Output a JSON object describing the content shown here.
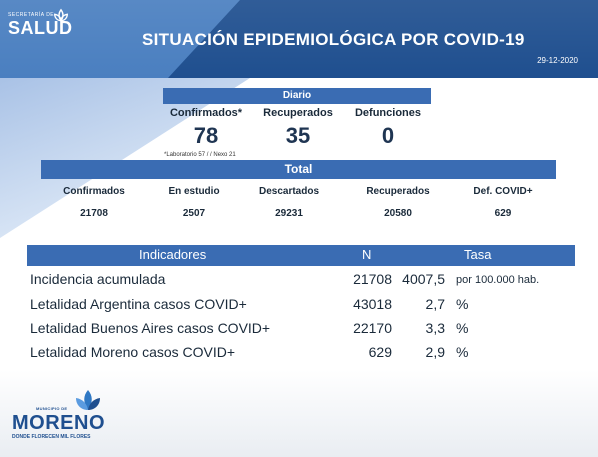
{
  "header": {
    "logo_small": "SECRETARÍA DE",
    "logo_big": "SALUD",
    "title": "SITUACIÓN EPIDEMIOLÓGICA POR COVID-19",
    "date": "29-12-2020"
  },
  "diario": {
    "label": "Diario",
    "columns": [
      {
        "label": "Confirmados*",
        "value": "78"
      },
      {
        "label": "Recuperados",
        "value": "35"
      },
      {
        "label": "Defunciones",
        "value": "0"
      }
    ],
    "footnote": "*Laboratorio 57 / / Nexo 21"
  },
  "total": {
    "label": "Total",
    "columns": [
      {
        "label": "Confirmados",
        "value": "21708"
      },
      {
        "label": "En estudio",
        "value": "2507"
      },
      {
        "label": "Descartados",
        "value": "29231"
      },
      {
        "label": "Recuperados",
        "value": "20580"
      },
      {
        "label": "Def. COVID+",
        "value": "629"
      }
    ]
  },
  "indicadores": {
    "headers": {
      "indicador": "Indicadores",
      "n": "N",
      "tasa": "Tasa"
    },
    "rows": [
      {
        "indicador": "Incidencia acumulada",
        "n": "21708",
        "tasa": "4007,5",
        "unidad": "por 100.000 hab."
      },
      {
        "indicador": "Letalidad Argentina casos COVID+",
        "n": "43018",
        "tasa": "2,7",
        "unidad": "%"
      },
      {
        "indicador": "Letalidad Buenos Aires casos COVID+",
        "n": "22170",
        "tasa": "3,3",
        "unidad": "%"
      },
      {
        "indicador": "Letalidad Moreno casos COVID+",
        "n": "629",
        "tasa": "2,9",
        "unidad": "%"
      }
    ]
  },
  "footer_logo": {
    "municipio": "MUNICIPIO DE",
    "name": "MORENO",
    "tagline": "DONDE FLORECEN MIL FLORES"
  },
  "colors": {
    "banner": "#1f4f8f",
    "band": "#3a6cb3",
    "text": "#1a2a3a"
  }
}
